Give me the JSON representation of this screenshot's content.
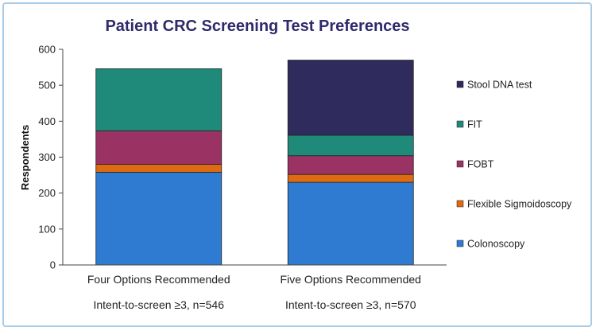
{
  "chart_data": {
    "type": "bar",
    "stacked": true,
    "title": "Patient CRC Screening Test Preferences",
    "ylabel": "Respondents",
    "xlabel": "",
    "ylim": [
      0,
      600
    ],
    "yticks": [
      "0",
      "100",
      "200",
      "300",
      "400",
      "500",
      "600"
    ],
    "categories": [
      "Four Options Recommended",
      "Five Options Recommended"
    ],
    "category_sublabels": [
      "Intent-to-screen  ≥3, n=546",
      "Intent-to-screen  ≥3, n=570"
    ],
    "series": [
      {
        "name": "Colonoscopy",
        "color": "#2e7bd1",
        "values": [
          258,
          230
        ]
      },
      {
        "name": "Flexible Sigmoidoscopy",
        "color": "#de6b12",
        "values": [
          22,
          22
        ]
      },
      {
        "name": "FOBT",
        "color": "#9a3364",
        "values": [
          93,
          52
        ]
      },
      {
        "name": "FIT",
        "color": "#1f8a7a",
        "values": [
          173,
          57
        ]
      },
      {
        "name": "Stool DNA test",
        "color": "#2f2b5c",
        "values": [
          0,
          209
        ]
      }
    ],
    "legend_position": "right",
    "grid": false
  }
}
